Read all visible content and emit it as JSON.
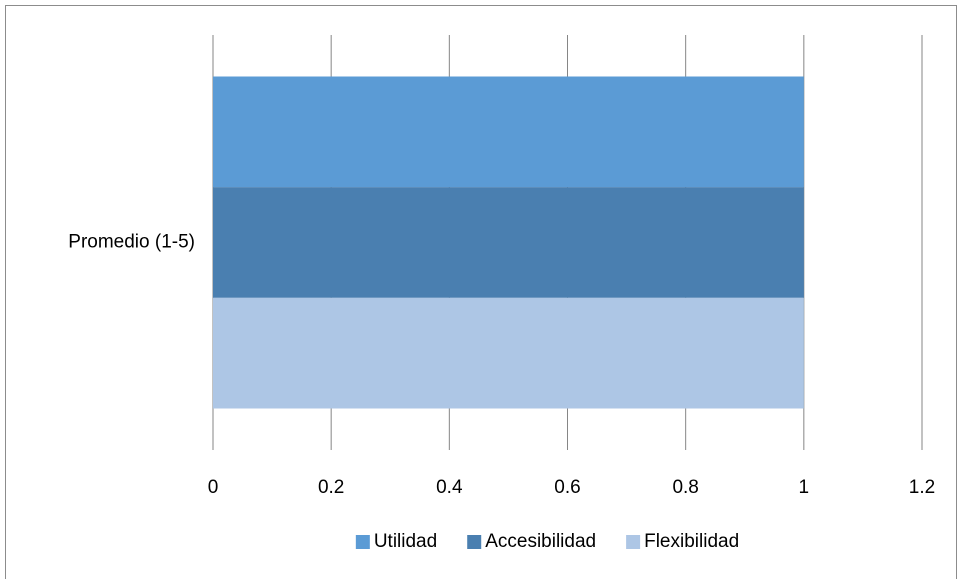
{
  "chart_data": {
    "type": "bar",
    "orientation": "horizontal",
    "categories": [
      "Promedio (1-5)"
    ],
    "series": [
      {
        "name": "Utilidad",
        "color": "#5b9bd5",
        "values": [
          1
        ]
      },
      {
        "name": "Accesibilidad",
        "color": "#4a7fb0",
        "values": [
          1
        ]
      },
      {
        "name": "Flexibilidad",
        "color": "#adc6e5",
        "values": [
          1
        ]
      }
    ],
    "xlim": [
      0,
      1.2
    ],
    "xticks": [
      0,
      0.2,
      0.4,
      0.6,
      0.8,
      1,
      1.2
    ],
    "grid": true,
    "legend": "bottom"
  }
}
